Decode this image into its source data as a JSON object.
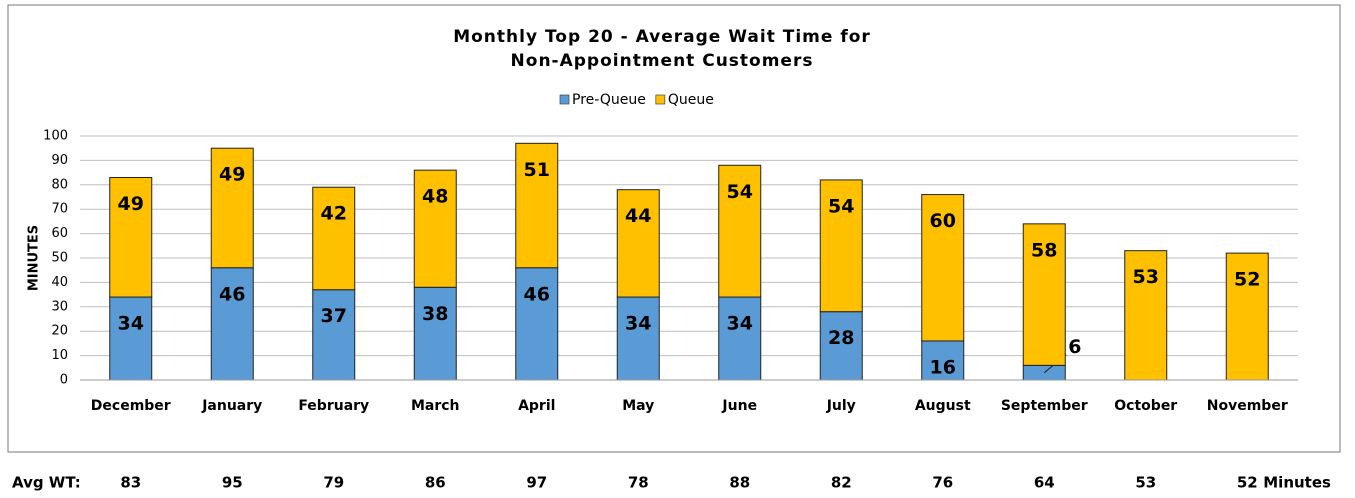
{
  "chart_data": {
    "type": "stacked_bar",
    "title": "Monthly Top 20 - Average Wait Time for",
    "subtitle": "Non-Appointment Customers",
    "ylabel": "MINUTES",
    "categories": [
      "December",
      "January",
      "February",
      "March",
      "April",
      "May",
      "June",
      "July",
      "August",
      "September",
      "October",
      "November"
    ],
    "series": [
      {
        "name": "Pre-Queue",
        "color": "#5b9bd5",
        "values": [
          34,
          46,
          37,
          38,
          46,
          34,
          34,
          28,
          16,
          6,
          0,
          0
        ]
      },
      {
        "name": "Queue",
        "color": "#ffc000",
        "values": [
          49,
          49,
          42,
          48,
          51,
          44,
          54,
          54,
          60,
          58,
          53,
          52
        ]
      }
    ],
    "ylim": [
      0,
      100
    ],
    "yticks": [
      0,
      10,
      20,
      30,
      40,
      50,
      60,
      70,
      80,
      90,
      100
    ],
    "grid": true,
    "legend": "top",
    "footer": {
      "label": "Avg WT:",
      "values": [
        83,
        95,
        79,
        86,
        97,
        78,
        88,
        82,
        76,
        64,
        53,
        52
      ],
      "unit": "Minutes"
    }
  }
}
